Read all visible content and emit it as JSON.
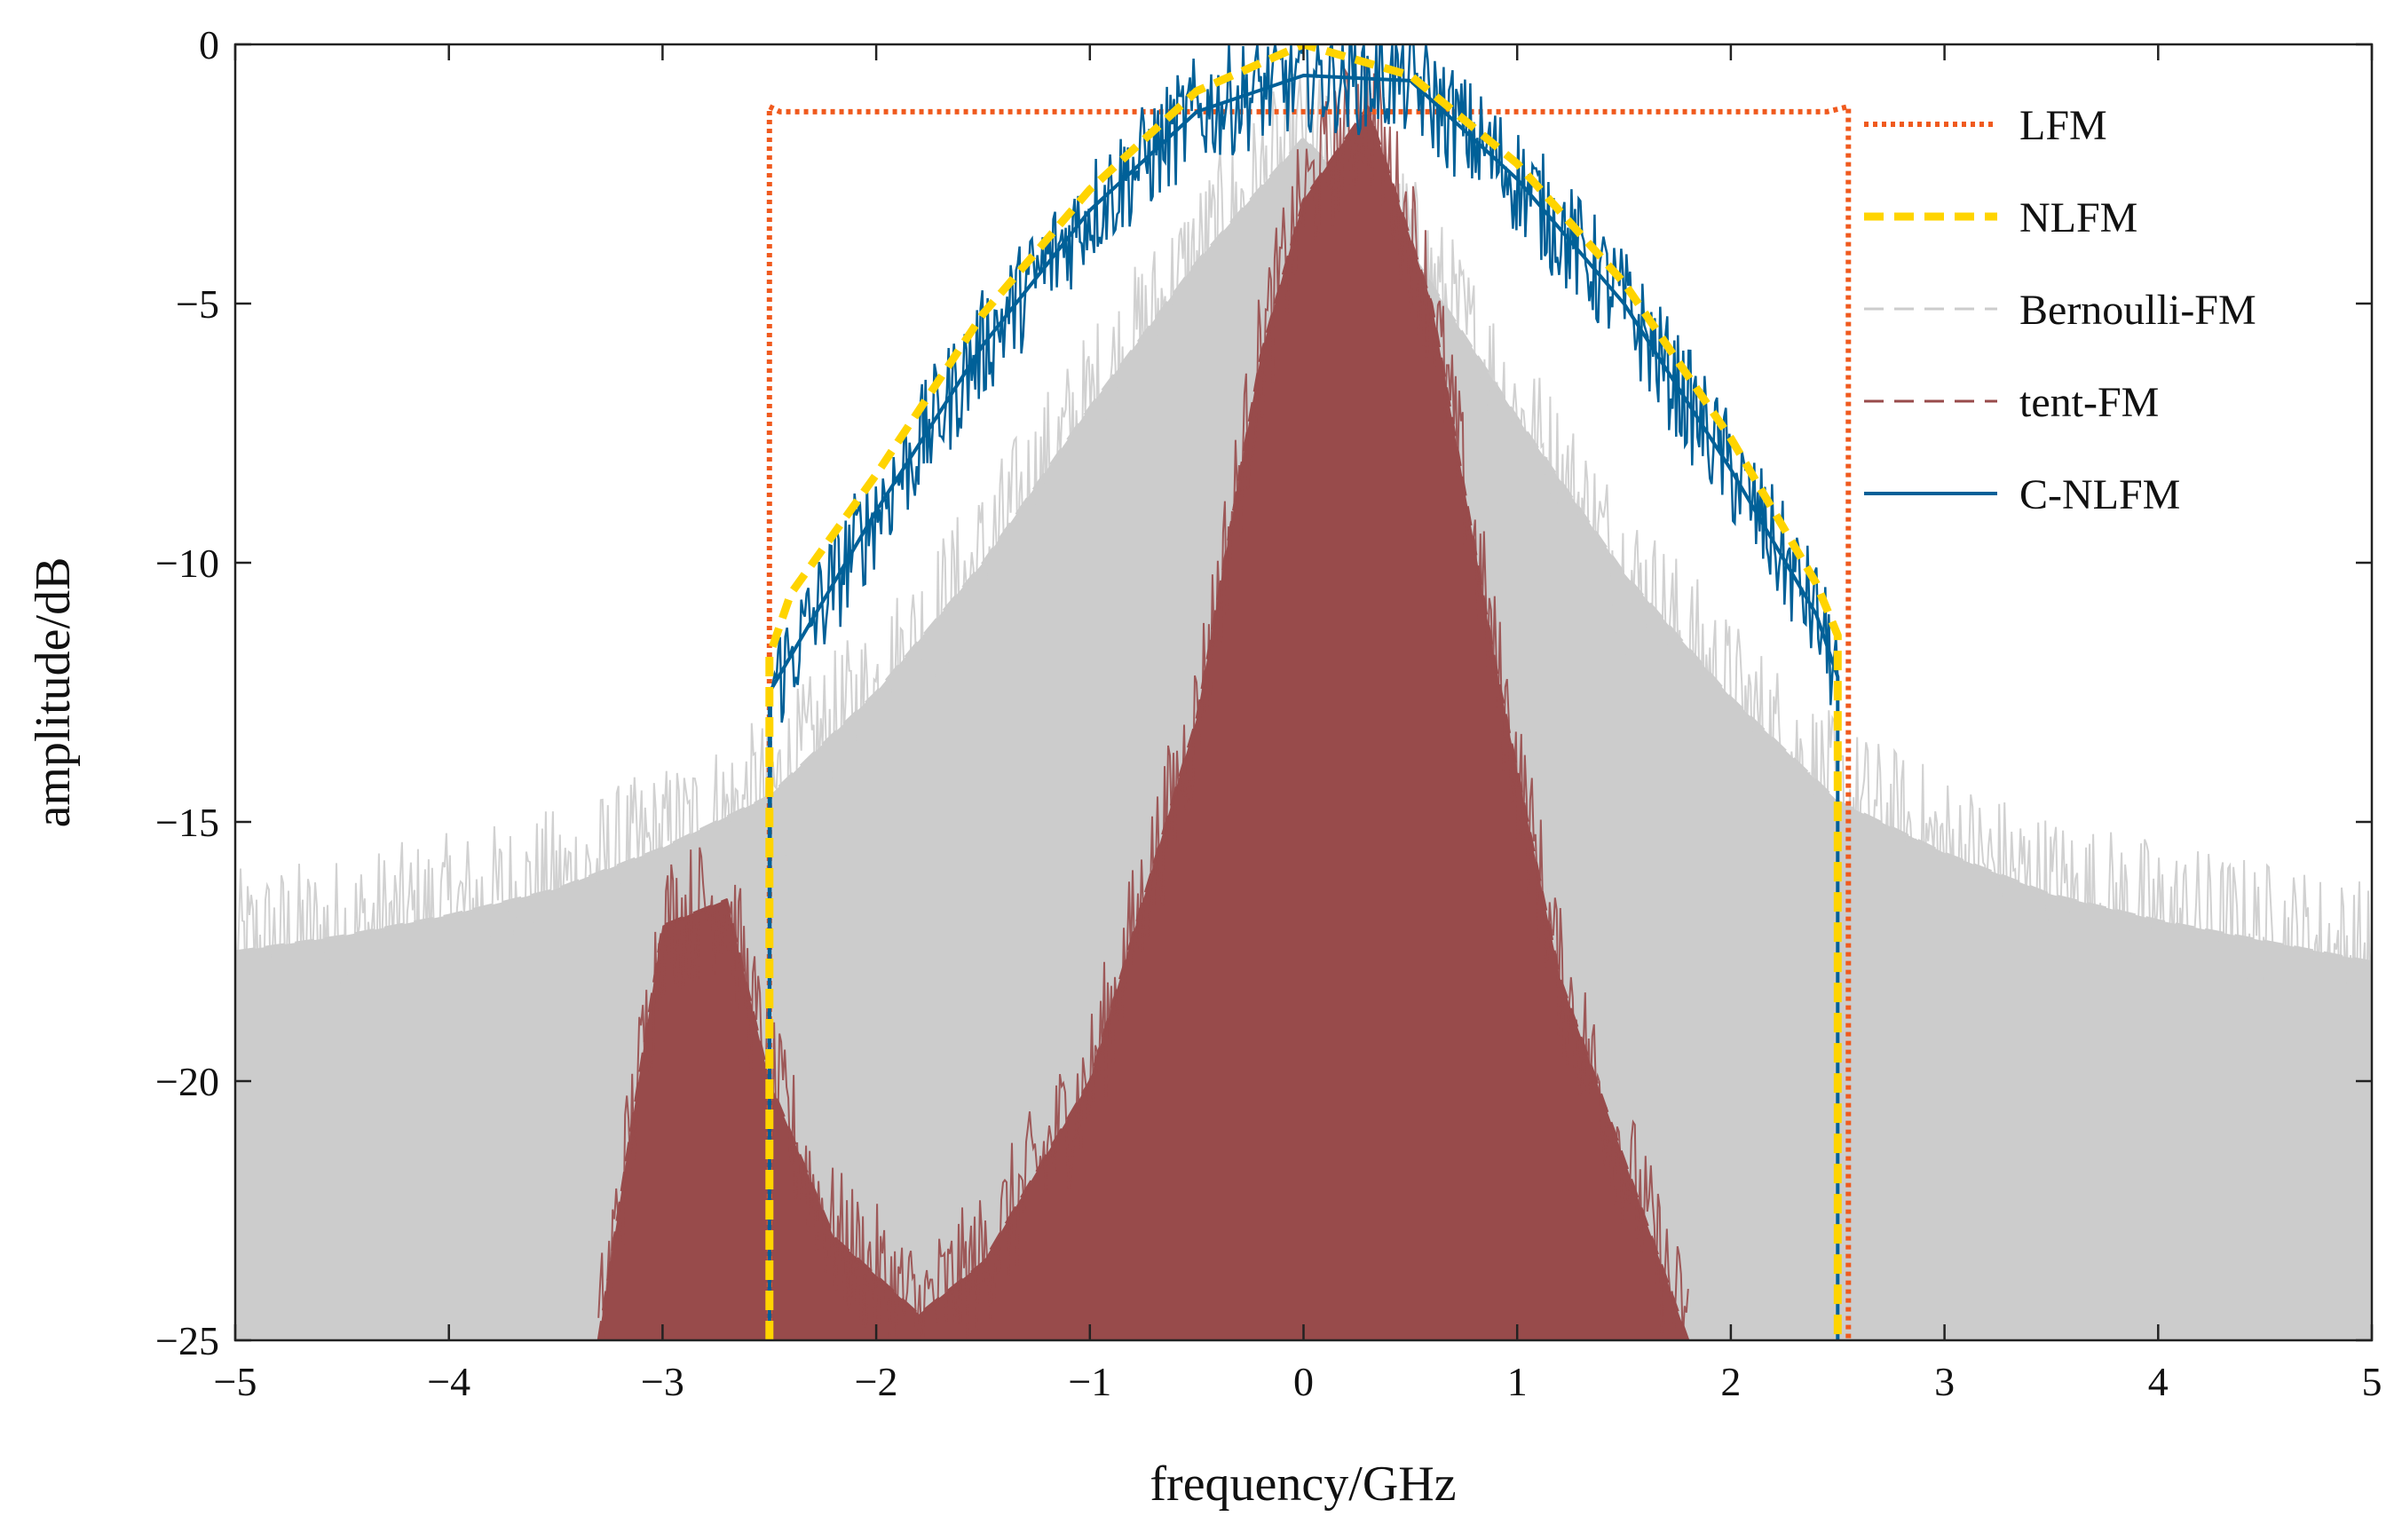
{
  "chart_data": {
    "type": "line",
    "title": "",
    "xlabel": "frequency/GHz",
    "ylabel": "amplitude/dB",
    "xlim": [
      -5,
      5
    ],
    "ylim": [
      -25,
      0
    ],
    "xticks": [
      -5,
      -4,
      -3,
      -2,
      -1,
      0,
      1,
      2,
      3,
      4,
      5
    ],
    "yticks": [
      0,
      -5,
      -10,
      -15,
      -20,
      -25
    ],
    "xtick_labels": [
      "−5",
      "−4",
      "−3",
      "−2",
      "−1",
      "0",
      "1",
      "2",
      "3",
      "4",
      "5"
    ],
    "ytick_labels": [
      "0",
      "−5",
      "−10",
      "−15",
      "−20",
      "−25"
    ],
    "grid": false,
    "legend_position": "right",
    "series": [
      {
        "name": "LFM",
        "style": "dotted",
        "color": "#f05a1e",
        "x": [
          -2.5,
          -2.5,
          -2.45,
          -2.0,
          -1.0,
          0.0,
          1.0,
          2.0,
          2.45,
          2.55,
          2.55
        ],
        "y": [
          -25,
          -1.2,
          -1.3,
          -1.3,
          -1.3,
          -1.3,
          -1.3,
          -1.3,
          -1.3,
          -1.2,
          -25
        ]
      },
      {
        "name": "NLFM",
        "style": "dashed",
        "color": "#ffd400",
        "x": [
          -2.5,
          -2.5,
          -2.4,
          -2.0,
          -1.5,
          -1.0,
          -0.5,
          0.0,
          0.5,
          1.0,
          1.5,
          2.0,
          2.4,
          2.5,
          2.5
        ],
        "y": [
          -25,
          -11.8,
          -10.6,
          -8.3,
          -5.2,
          -2.8,
          -0.9,
          0.0,
          -0.6,
          -2.3,
          -4.6,
          -7.6,
          -10.4,
          -11.4,
          -25
        ]
      },
      {
        "name": "Bernoulli-FM",
        "style": "dashed",
        "color": "#cccccc",
        "x": [
          -5,
          -4.5,
          -4.0,
          -3.5,
          -3.0,
          -2.5,
          -2.0,
          -1.5,
          -1.0,
          -0.5,
          0.0,
          0.5,
          1.0,
          1.5,
          2.0,
          2.5,
          3.0,
          3.5,
          4.0,
          4.5,
          5
        ],
        "y": [
          -17.5,
          -17.2,
          -16.8,
          -16.3,
          -15.5,
          -14.5,
          -12.5,
          -10.0,
          -7.0,
          -4.2,
          -1.8,
          -4.0,
          -7.2,
          -10.2,
          -12.6,
          -14.6,
          -15.6,
          -16.4,
          -16.9,
          -17.3,
          -17.7
        ]
      },
      {
        "name": "tent-FM",
        "style": "dashed",
        "color": "#984b4b",
        "x": [
          -3.3,
          -3.0,
          -2.7,
          -2.5,
          -2.2,
          -1.8,
          -1.5,
          -1.0,
          -0.5,
          -0.2,
          0.0,
          0.3,
          0.6,
          0.9,
          1.2,
          1.5,
          1.8
        ],
        "y": [
          -25,
          -17.0,
          -16.5,
          -20.0,
          -23.0,
          -24.5,
          -23.5,
          -20.0,
          -13.0,
          -6.0,
          -3.0,
          -1.2,
          -5.0,
          -12.0,
          -18.0,
          -21.5,
          -25
        ]
      },
      {
        "name": "C-NLFM",
        "style": "solid",
        "color": "#006098",
        "x": [
          -2.5,
          -2.5,
          -2.4,
          -2.0,
          -1.5,
          -1.0,
          -0.5,
          0.0,
          0.5,
          1.0,
          1.5,
          2.0,
          2.4,
          2.5,
          2.5
        ],
        "y": [
          -25,
          -12.5,
          -11.8,
          -9.0,
          -5.8,
          -3.2,
          -1.3,
          -0.6,
          -0.7,
          -2.6,
          -5.0,
          -8.2,
          -11.0,
          -12.2,
          -25
        ]
      }
    ]
  }
}
